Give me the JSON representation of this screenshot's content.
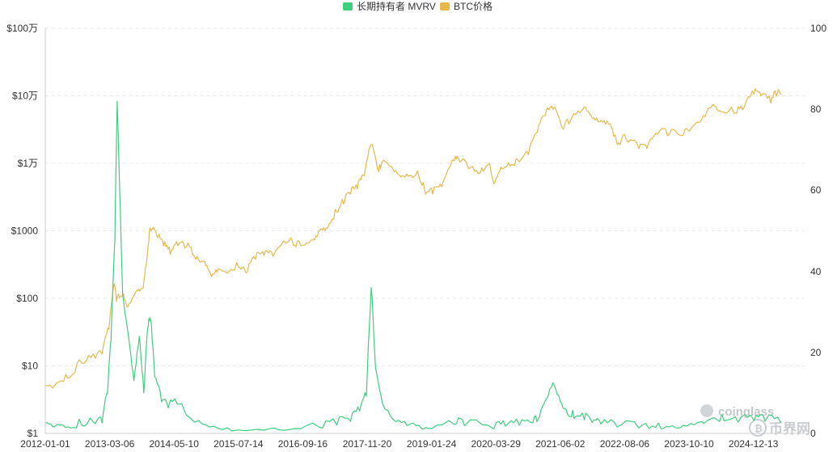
{
  "chart_data": {
    "type": "line",
    "legend": {
      "placement": "top-center",
      "items": [
        {
          "label": "长期持有者 MVRV",
          "color": "#3ecf7d"
        },
        {
          "label": "BTC价格",
          "color": "#e8b94a"
        }
      ]
    },
    "x_ticks": [
      "2012-01-01",
      "2013-03-06",
      "2014-05-10",
      "2015-07-14",
      "2016-09-16",
      "2017-11-20",
      "2019-01-24",
      "2020-03-29",
      "2021-06-02",
      "2022-08-06",
      "2023-10-10",
      "2024-12-13"
    ],
    "y_left": {
      "scale": "log",
      "ticks": [
        "$100万",
        "$10万",
        "$1万",
        "$1000",
        "$100",
        "$10",
        "$1"
      ],
      "range": [
        1,
        1000000
      ]
    },
    "y_right": {
      "scale": "linear",
      "ticks": [
        "100",
        "80",
        "60",
        "40",
        "20",
        "0"
      ],
      "range": [
        0,
        100
      ]
    },
    "grid": true,
    "series": [
      {
        "name": "BTC价格",
        "axis": "left",
        "color": "#e8b94a",
        "x": [
          "2012-01-01",
          "2012-03-01",
          "2012-06-01",
          "2012-09-01",
          "2012-12-01",
          "2013-01-15",
          "2013-03-01",
          "2013-04-05",
          "2013-04-20",
          "2013-06-01",
          "2013-07-05",
          "2013-09-01",
          "2013-10-15",
          "2013-11-15",
          "2013-12-01",
          "2014-01-15",
          "2014-03-01",
          "2014-04-15",
          "2014-06-05",
          "2014-08-01",
          "2014-10-01",
          "2014-12-01",
          "2015-01-15",
          "2015-03-01",
          "2015-05-01",
          "2015-07-15",
          "2015-09-01",
          "2015-11-05",
          "2016-01-01",
          "2016-03-01",
          "2016-06-15",
          "2016-08-01",
          "2016-10-01",
          "2016-12-01",
          "2017-01-05",
          "2017-03-01",
          "2017-05-01",
          "2017-06-15",
          "2017-08-01",
          "2017-09-15",
          "2017-11-01",
          "2017-12-17",
          "2018-02-05",
          "2018-03-01",
          "2018-05-01",
          "2018-07-01",
          "2018-09-01",
          "2018-11-01",
          "2018-12-15",
          "2019-02-01",
          "2019-04-01",
          "2019-06-26",
          "2019-08-01",
          "2019-10-01",
          "2019-12-15",
          "2020-02-15",
          "2020-03-15",
          "2020-05-01",
          "2020-07-01",
          "2020-09-01",
          "2020-11-01",
          "2020-12-31",
          "2021-02-20",
          "2021-04-14",
          "2021-06-22",
          "2021-08-15",
          "2021-11-10",
          "2022-01-01",
          "2022-03-01",
          "2022-05-01",
          "2022-06-18",
          "2022-08-15",
          "2022-11-09",
          "2023-01-01",
          "2023-03-15",
          "2023-06-01",
          "2023-09-01",
          "2023-11-01",
          "2024-01-01",
          "2024-03-14",
          "2024-05-01",
          "2024-08-05",
          "2024-10-01",
          "2024-12-17",
          "2025-02-01",
          "2025-04-08",
          "2025-05-22",
          "2025-06-15"
        ],
        "y": [
          5,
          5,
          6.5,
          11,
          13,
          15,
          35,
          160,
          90,
          110,
          75,
          130,
          140,
          500,
          1100,
          850,
          600,
          450,
          600,
          580,
          380,
          350,
          210,
          270,
          235,
          290,
          240,
          380,
          430,
          420,
          700,
          580,
          620,
          760,
          1000,
          1100,
          1900,
          2500,
          3500,
          4200,
          6500,
          19000,
          7500,
          10500,
          9000,
          6300,
          6600,
          6300,
          3500,
          3500,
          4500,
          11000,
          10500,
          8300,
          7200,
          10000,
          5000,
          8800,
          9200,
          10500,
          13500,
          29000,
          50000,
          63000,
          32000,
          46000,
          68000,
          47000,
          43000,
          38000,
          19000,
          23000,
          16500,
          16600,
          27000,
          27000,
          26000,
          35000,
          44000,
          73000,
          60000,
          55000,
          62000,
          106000,
          100000,
          78000,
          110000,
          105000
        ]
      },
      {
        "name": "长期持有者 MVRV",
        "axis": "right",
        "color": "#3ecf7d",
        "x": [
          "2012-01-01",
          "2012-03-01",
          "2012-06-01",
          "2012-09-01",
          "2012-12-01",
          "2013-01-15",
          "2013-02-20",
          "2013-03-15",
          "2013-04-10",
          "2013-04-25",
          "2013-06-01",
          "2013-07-10",
          "2013-08-15",
          "2013-09-20",
          "2013-10-20",
          "2013-11-15",
          "2013-12-04",
          "2014-01-01",
          "2014-02-15",
          "2014-04-01",
          "2014-06-15",
          "2014-09-01",
          "2015-01-01",
          "2015-06-01",
          "2016-01-01",
          "2016-06-15",
          "2017-01-01",
          "2017-05-01",
          "2017-08-01",
          "2017-10-01",
          "2017-11-15",
          "2017-12-17",
          "2018-01-15",
          "2018-03-01",
          "2018-06-01",
          "2018-09-01",
          "2018-12-15",
          "2019-06-26",
          "2019-09-01",
          "2020-03-15",
          "2020-06-01",
          "2020-09-01",
          "2020-12-01",
          "2021-01-15",
          "2021-02-20",
          "2021-04-14",
          "2021-06-01",
          "2021-07-20",
          "2021-09-01",
          "2021-11-10",
          "2022-01-01",
          "2022-03-01",
          "2022-06-18",
          "2022-11-09",
          "2023-03-01",
          "2023-06-01",
          "2023-09-01",
          "2024-01-01",
          "2024-03-14",
          "2024-06-01",
          "2024-09-01",
          "2024-12-17",
          "2025-03-01",
          "2025-06-15"
        ],
        "y": [
          2.6,
          1.6,
          1.6,
          2.0,
          2.4,
          2.6,
          10,
          23,
          48,
          82,
          34,
          24,
          13,
          24,
          10,
          26,
          28,
          14,
          7.8,
          6.3,
          7.2,
          3.6,
          1.6,
          0.6,
          0.8,
          0.9,
          1.6,
          2.1,
          3.0,
          5.5,
          9.2,
          36,
          16,
          7.5,
          2.9,
          2.3,
          1.4,
          2.2,
          1.9,
          1.1,
          1.8,
          2.0,
          2.6,
          4.1,
          8.0,
          12.5,
          8.0,
          4.8,
          3.7,
          3.4,
          2.7,
          2.3,
          1.6,
          1.3,
          1.5,
          1.6,
          2.0,
          2.9,
          3.8,
          3.1,
          2.8,
          3.2,
          3.0,
          2.6
        ]
      }
    ]
  },
  "watermarks": {
    "coinglass": "coinglass",
    "bijie": "币界网"
  }
}
